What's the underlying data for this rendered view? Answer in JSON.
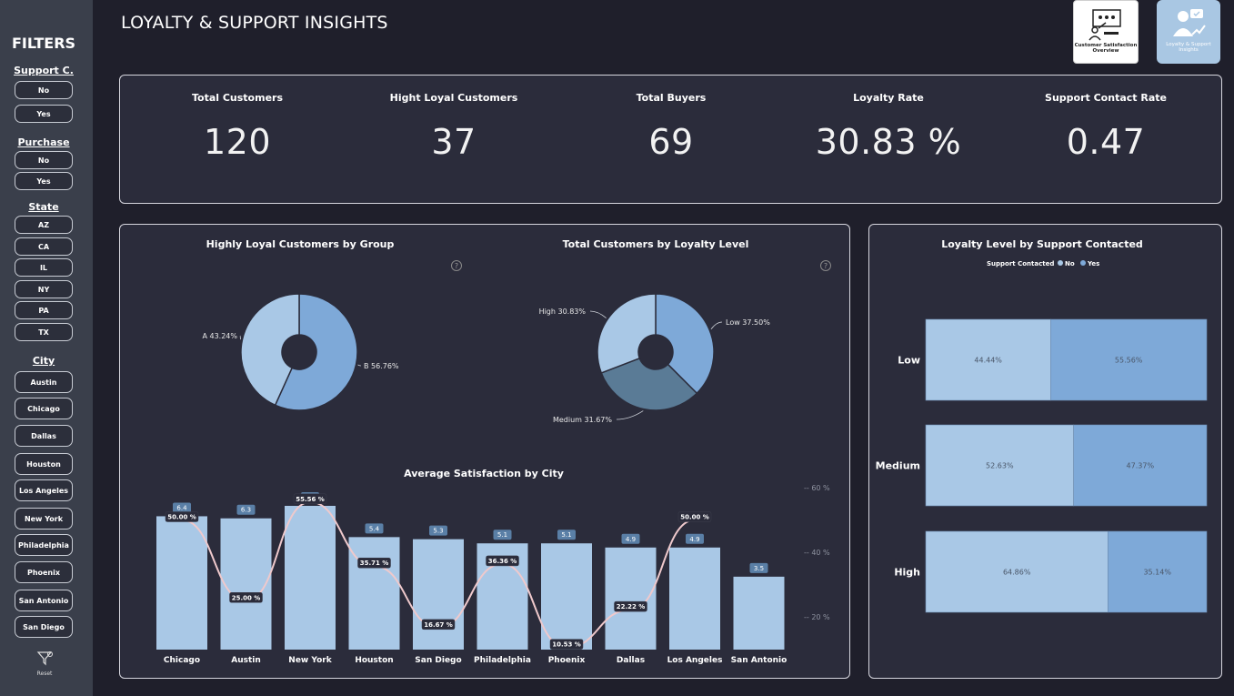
{
  "sidebar": {
    "title": "FILTERS",
    "groups": {
      "support": {
        "title": "Support C.",
        "options": [
          "No",
          "Yes"
        ]
      },
      "purchase": {
        "title": "Purchase",
        "options": [
          "No",
          "Yes"
        ]
      },
      "state": {
        "title": "State",
        "options": [
          "AZ",
          "CA",
          "IL",
          "NY",
          "PA",
          "TX"
        ]
      },
      "city": {
        "title": "City",
        "options": [
          "Austin",
          "Chicago",
          "Dallas",
          "Houston",
          "Los Angeles",
          "New York",
          "Philadelphia",
          "Phoenix",
          "San Antonio",
          "San Diego"
        ]
      }
    },
    "reset_label": "Reset"
  },
  "header": {
    "title": "LOYALTY & SUPPORT INSIGHTS",
    "nav_overview_label": "Customer Satisfaction Overview",
    "nav_loyalty_label": "Loyalty & Support Insights"
  },
  "kpis": [
    {
      "label": "Total Customers",
      "value": "120"
    },
    {
      "label": "Hight Loyal Customers",
      "value": "37"
    },
    {
      "label": "Total Buyers",
      "value": "69"
    },
    {
      "label": "Loyalty Rate",
      "value": "30.83 %"
    },
    {
      "label": "Support Contact Rate",
      "value": "0.47"
    }
  ],
  "colors": {
    "light_blue": "#a9c8e6",
    "mid_blue": "#7ea9d8",
    "steel_blue": "#5a7b96",
    "line_pink": "#efc9cc",
    "card_bg": "#2b2c3b"
  },
  "chart_data": [
    {
      "type": "pie",
      "title": "Highly Loyal Customers by Group",
      "categories": [
        "B",
        "A"
      ],
      "labels": [
        "B 56.76%",
        "A 43.24%"
      ],
      "values": [
        56.76,
        43.24
      ],
      "colors": [
        "#7ea9d8",
        "#a9c8e6"
      ]
    },
    {
      "type": "pie",
      "title": "Total Customers by Loyalty Level",
      "categories": [
        "Low",
        "Medium",
        "High"
      ],
      "labels": [
        "Low 37.50%",
        "Medium 31.67%",
        "High 30.83%"
      ],
      "values": [
        37.5,
        31.67,
        30.83
      ],
      "colors": [
        "#7ea9d8",
        "#5a7b96",
        "#a9c8e6"
      ]
    },
    {
      "type": "bar",
      "title": "Average Satisfaction by City",
      "categories": [
        "Chicago",
        "Austin",
        "New York",
        "Houston",
        "San Diego",
        "Philadelphia",
        "Phoenix",
        "Dallas",
        "Los Angeles",
        "San Antonio"
      ],
      "series": [
        {
          "values": [
            6.4,
            6.3,
            6.9,
            5.4,
            5.3,
            5.1,
            5.1,
            4.9,
            4.9,
            3.5
          ]
        },
        {
          "values": [
            50.0,
            25.0,
            55.56,
            35.71,
            16.67,
            36.36,
            10.53,
            22.22,
            50.0,
            null
          ]
        }
      ],
      "bar_labels": [
        "6.4",
        "6.3",
        "6.9",
        "5.4",
        "5.3",
        "5.1",
        "5.1",
        "4.9",
        "4.9",
        "3.5"
      ],
      "line_labels": [
        "50.00 %",
        "25.00 %",
        "55.56 %",
        "35.71 %",
        "16.67 %",
        "36.36 %",
        "10.53 %",
        "22.22 %",
        "50.00 %",
        ""
      ],
      "y2_ticks": [
        "60 %",
        "40 %",
        "20 %"
      ]
    },
    {
      "type": "bar",
      "title": "Loyalty Level by Support Contacted",
      "legend_title": "Support Contacted",
      "legend": [
        "No",
        "Yes"
      ],
      "categories": [
        "Low",
        "Medium",
        "High"
      ],
      "series": [
        {
          "name": "No",
          "values": [
            44.44,
            52.63,
            64.86
          ],
          "labels": [
            "44.44%",
            "52.63%",
            "64.86%"
          ]
        },
        {
          "name": "Yes",
          "values": [
            55.56,
            47.37,
            35.14
          ],
          "labels": [
            "55.56%",
            "47.37%",
            "35.14%"
          ]
        }
      ]
    }
  ]
}
